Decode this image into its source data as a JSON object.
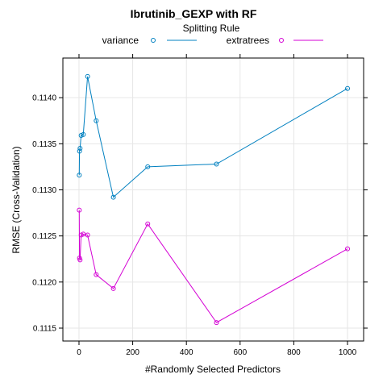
{
  "chart_data": {
    "type": "line",
    "title": "Ibrutinib_GEXP with RF",
    "legend_title": "Splitting Rule",
    "legend_position": "top",
    "xlabel": "#Randomly Selected Predictors",
    "ylabel": "RMSE (Cross-Validation)",
    "xlim": [
      -60,
      1060
    ],
    "ylim": [
      0.11136,
      0.11443
    ],
    "x_ticks": [
      0,
      200,
      400,
      600,
      800,
      1000
    ],
    "y_ticks": [
      0.1115,
      0.112,
      0.1125,
      0.113,
      0.1135,
      0.114
    ],
    "y_tick_labels": [
      "0.1115",
      "0.1120",
      "0.1125",
      "0.1130",
      "0.1135",
      "0.1140"
    ],
    "grid": true,
    "x": [
      1,
      2,
      4,
      8,
      16,
      32,
      64,
      128,
      256,
      512,
      1000
    ],
    "series": [
      {
        "name": "variance",
        "color": "#0080c0",
        "values": [
          0.11316,
          0.11342,
          0.11345,
          0.11359,
          0.1136,
          0.11423,
          0.11375,
          0.11292,
          0.11325,
          0.11328,
          0.1141
        ]
      },
      {
        "name": "extratrees",
        "color": "#d400d4",
        "values": [
          0.11278,
          0.11226,
          0.11224,
          0.11251,
          0.11252,
          0.11251,
          0.11208,
          0.11193,
          0.11263,
          0.11156,
          0.11236
        ]
      }
    ]
  }
}
